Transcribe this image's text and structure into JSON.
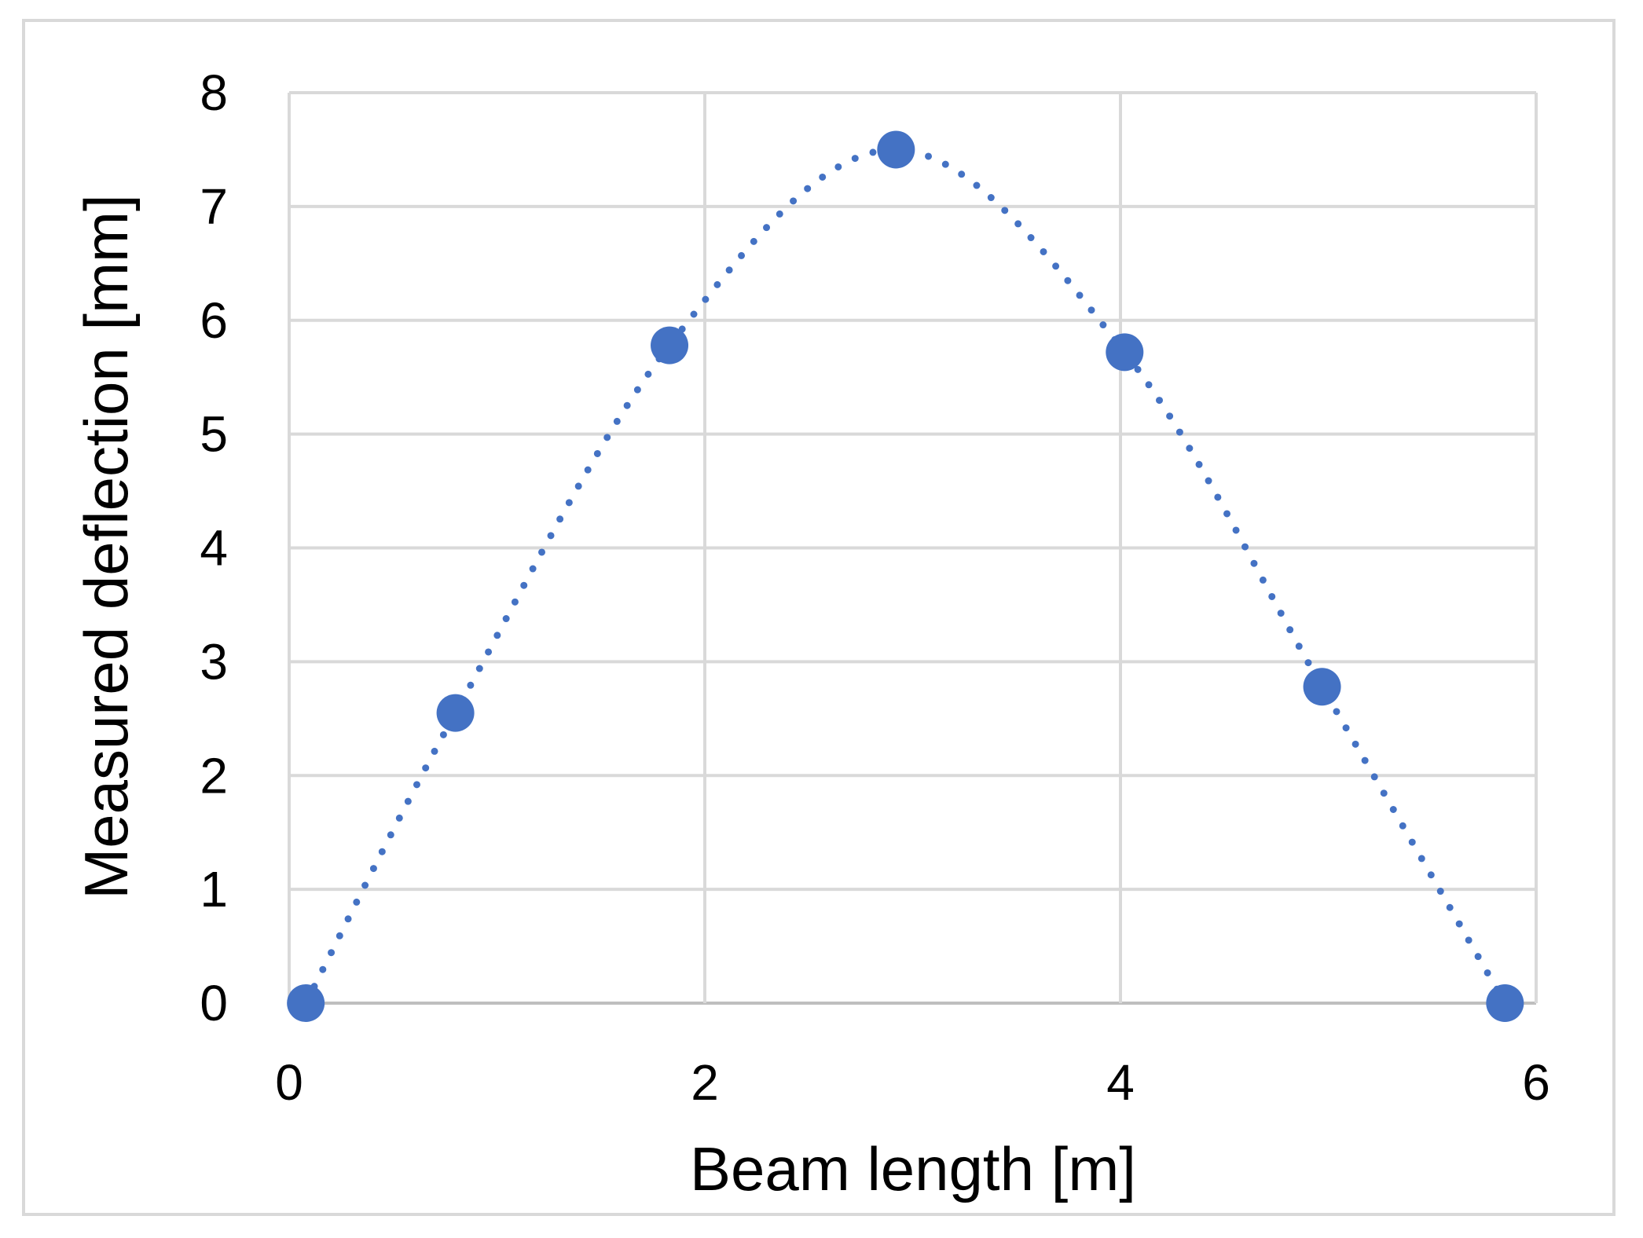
{
  "chart_data": {
    "type": "scatter",
    "xlabel": "Beam length [m]",
    "ylabel": "Measured deflection [mm]",
    "xlim": [
      0,
      6
    ],
    "ylim": [
      0,
      8
    ],
    "x_ticks": [
      "0",
      "2",
      "4",
      "6"
    ],
    "y_ticks": [
      "0",
      "1",
      "2",
      "3",
      "4",
      "5",
      "6",
      "7",
      "8"
    ],
    "grid": true,
    "legend": "none",
    "series": [
      {
        "x": [
          0.08,
          0.8,
          1.83,
          2.92,
          4.02,
          4.97,
          5.85
        ],
        "y": [
          0,
          2.55,
          5.78,
          7.5,
          5.72,
          2.78,
          0
        ],
        "marker_color": "#4472C4",
        "trendline": "dotted"
      }
    ],
    "colors": {
      "grid": "#d9d9d9",
      "axis": "#bfbfbf",
      "series": "#4472C4"
    }
  }
}
